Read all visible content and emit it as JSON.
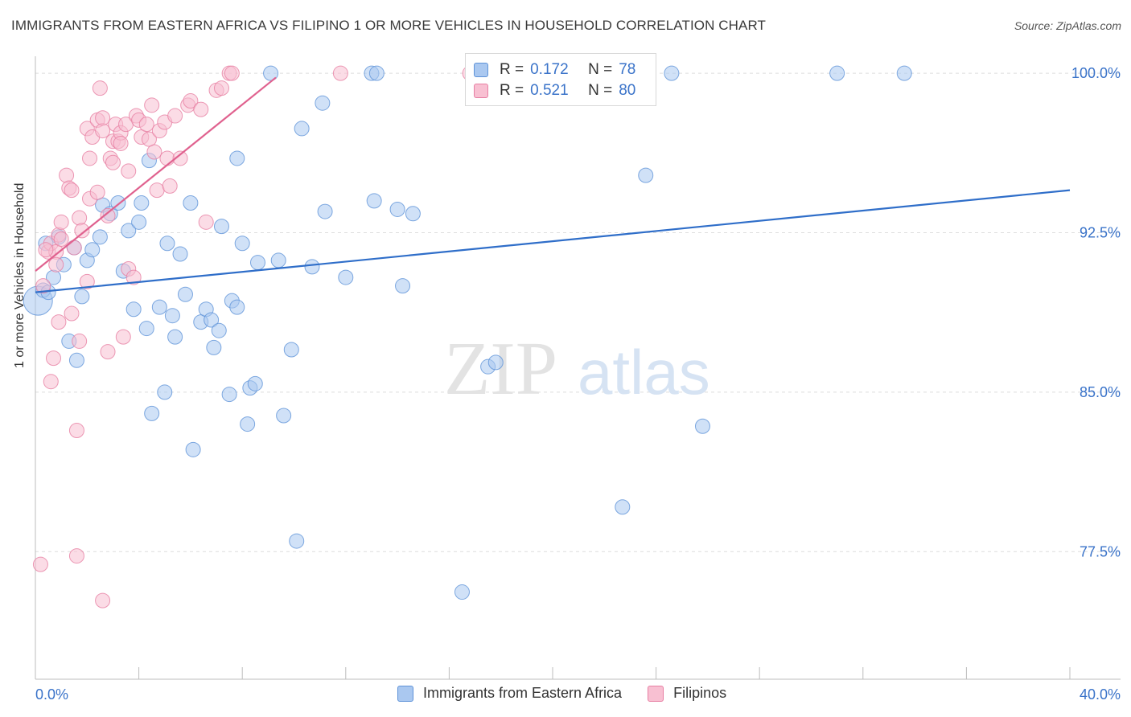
{
  "title": "IMMIGRANTS FROM EASTERN AFRICA VS FILIPINO 1 OR MORE VEHICLES IN HOUSEHOLD CORRELATION CHART",
  "source": "Source: ZipAtlas.com",
  "watermark": {
    "zip": "ZIP",
    "atlas": "atlas"
  },
  "legend": {
    "r_label": "R =",
    "n_label": "N =",
    "rows": [
      {
        "r": "0.172",
        "n": "78",
        "fill": "#aac8f0",
        "stroke": "#5f93d8"
      },
      {
        "r": "0.521",
        "n": "80",
        "fill": "#f8c0d2",
        "stroke": "#e77fa3"
      }
    ]
  },
  "bottom_legend": [
    {
      "label": "Immigrants from Eastern Africa",
      "fill": "#aac8f0",
      "stroke": "#5f93d8"
    },
    {
      "label": "Filipinos",
      "fill": "#f8c0d2",
      "stroke": "#e77fa3"
    }
  ],
  "chart_data": {
    "type": "scatter",
    "title": "IMMIGRANTS FROM EASTERN AFRICA VS FILIPINO 1 OR MORE VEHICLES IN HOUSEHOLD CORRELATION CHART",
    "xlabel": "",
    "ylabel": "1 or more Vehicles in Household",
    "xlim": [
      0,
      40
    ],
    "ylim": [
      71.5,
      100.8
    ],
    "x_tick_labels": [
      "0.0%",
      "40.0%"
    ],
    "y_ticks": [
      77.5,
      85.0,
      92.5,
      100.0
    ],
    "y_tick_labels": [
      "77.5%",
      "85.0%",
      "92.5%",
      "100.0%"
    ],
    "grid": true,
    "series": [
      {
        "name": "Immigrants from Eastern Africa",
        "color": "#5f93d8",
        "fill": "#aac8f0",
        "line_color": "#2f6ec9",
        "trend": {
          "x": [
            0,
            40
          ],
          "y": [
            89.7,
            94.5
          ]
        },
        "points": [
          [
            0.1,
            89.3
          ],
          [
            0.3,
            89.8
          ],
          [
            0.4,
            92.0
          ],
          [
            0.5,
            89.7
          ],
          [
            0.7,
            90.4
          ],
          [
            0.9,
            92.3
          ],
          [
            1.1,
            91.0
          ],
          [
            1.3,
            87.4
          ],
          [
            1.5,
            91.8
          ],
          [
            1.6,
            86.5
          ],
          [
            1.8,
            89.5
          ],
          [
            2.0,
            91.2
          ],
          [
            2.2,
            91.7
          ],
          [
            2.5,
            92.3
          ],
          [
            2.6,
            93.8
          ],
          [
            2.9,
            93.4
          ],
          [
            3.2,
            93.9
          ],
          [
            3.4,
            90.7
          ],
          [
            3.6,
            92.6
          ],
          [
            3.8,
            88.9
          ],
          [
            4.0,
            93.0
          ],
          [
            4.1,
            93.9
          ],
          [
            4.3,
            88.0
          ],
          [
            4.4,
            95.9
          ],
          [
            4.5,
            84.0
          ],
          [
            4.8,
            89.0
          ],
          [
            5.0,
            85.0
          ],
          [
            5.1,
            92.0
          ],
          [
            5.3,
            88.6
          ],
          [
            5.4,
            87.6
          ],
          [
            5.6,
            91.5
          ],
          [
            5.8,
            89.6
          ],
          [
            6.0,
            93.9
          ],
          [
            6.1,
            82.3
          ],
          [
            6.4,
            88.3
          ],
          [
            6.6,
            88.9
          ],
          [
            6.8,
            88.4
          ],
          [
            6.9,
            87.1
          ],
          [
            7.1,
            87.9
          ],
          [
            7.2,
            92.8
          ],
          [
            7.6,
            89.3
          ],
          [
            7.5,
            84.9
          ],
          [
            7.8,
            89.0
          ],
          [
            7.8,
            96.0
          ],
          [
            8.0,
            92.0
          ],
          [
            8.2,
            83.5
          ],
          [
            8.3,
            85.2
          ],
          [
            8.5,
            85.4
          ],
          [
            8.6,
            91.1
          ],
          [
            9.1,
            100.0
          ],
          [
            9.4,
            91.2
          ],
          [
            9.6,
            83.9
          ],
          [
            9.9,
            87.0
          ],
          [
            10.1,
            78.0
          ],
          [
            10.3,
            97.4
          ],
          [
            10.7,
            90.9
          ],
          [
            11.1,
            98.6
          ],
          [
            11.2,
            93.5
          ],
          [
            12.0,
            90.4
          ],
          [
            13.0,
            100.0
          ],
          [
            13.2,
            100.0
          ],
          [
            13.1,
            94.0
          ],
          [
            14.0,
            93.6
          ],
          [
            14.2,
            90.0
          ],
          [
            14.6,
            93.4
          ],
          [
            16.5,
            75.6
          ],
          [
            17.5,
            86.2
          ],
          [
            17.8,
            86.4
          ],
          [
            22.7,
            79.6
          ],
          [
            23.6,
            95.2
          ],
          [
            24.6,
            100.0
          ],
          [
            25.8,
            83.4
          ],
          [
            31.0,
            100.0
          ],
          [
            33.6,
            100.0
          ]
        ]
      },
      {
        "name": "Filipinos",
        "color": "#e77fa3",
        "fill": "#f8c0d2",
        "line_color": "#e0628f",
        "trend": {
          "x": [
            0,
            9.3
          ],
          "y": [
            90.7,
            99.8
          ]
        },
        "points": [
          [
            0.2,
            76.9
          ],
          [
            0.3,
            90.0
          ],
          [
            0.5,
            91.6
          ],
          [
            0.6,
            92.0
          ],
          [
            0.6,
            85.5
          ],
          [
            0.7,
            86.6
          ],
          [
            0.8,
            91.6
          ],
          [
            0.9,
            92.4
          ],
          [
            0.9,
            88.3
          ],
          [
            1.0,
            93.0
          ],
          [
            1.2,
            95.2
          ],
          [
            1.3,
            94.6
          ],
          [
            1.4,
            94.5
          ],
          [
            1.4,
            88.7
          ],
          [
            1.5,
            91.8
          ],
          [
            1.6,
            83.2
          ],
          [
            1.6,
            77.3
          ],
          [
            1.7,
            93.2
          ],
          [
            1.7,
            87.4
          ],
          [
            1.8,
            92.6
          ],
          [
            2.0,
            97.4
          ],
          [
            2.0,
            90.2
          ],
          [
            2.1,
            94.1
          ],
          [
            2.1,
            96.0
          ],
          [
            2.2,
            97.0
          ],
          [
            2.4,
            97.8
          ],
          [
            2.4,
            94.4
          ],
          [
            2.5,
            99.3
          ],
          [
            2.6,
            97.3
          ],
          [
            2.6,
            97.9
          ],
          [
            2.8,
            93.3
          ],
          [
            2.8,
            86.9
          ],
          [
            2.9,
            96.0
          ],
          [
            3.0,
            96.8
          ],
          [
            3.0,
            95.8
          ],
          [
            3.1,
            97.6
          ],
          [
            3.2,
            96.8
          ],
          [
            3.3,
            97.2
          ],
          [
            3.3,
            96.7
          ],
          [
            3.5,
            97.6
          ],
          [
            3.6,
            90.8
          ],
          [
            3.6,
            95.4
          ],
          [
            3.8,
            90.4
          ],
          [
            3.9,
            98.0
          ],
          [
            4.0,
            97.8
          ],
          [
            4.1,
            97.0
          ],
          [
            4.3,
            97.6
          ],
          [
            4.4,
            96.9
          ],
          [
            4.5,
            98.5
          ],
          [
            4.6,
            96.3
          ],
          [
            4.7,
            94.5
          ],
          [
            4.8,
            97.3
          ],
          [
            5.0,
            97.7
          ],
          [
            5.1,
            96.0
          ],
          [
            5.2,
            94.7
          ],
          [
            5.4,
            98.0
          ],
          [
            5.6,
            96.0
          ],
          [
            5.9,
            98.5
          ],
          [
            6.0,
            98.7
          ],
          [
            6.4,
            98.3
          ],
          [
            6.6,
            93.0
          ],
          [
            7.0,
            99.2
          ],
          [
            7.2,
            99.3
          ],
          [
            7.5,
            100.0
          ],
          [
            7.6,
            100.0
          ],
          [
            11.8,
            100.0
          ],
          [
            16.8,
            100.0
          ],
          [
            0.4,
            91.7
          ],
          [
            1.0,
            92.2
          ],
          [
            2.6,
            75.2
          ],
          [
            3.4,
            87.6
          ],
          [
            0.8,
            91.0
          ]
        ]
      }
    ]
  }
}
